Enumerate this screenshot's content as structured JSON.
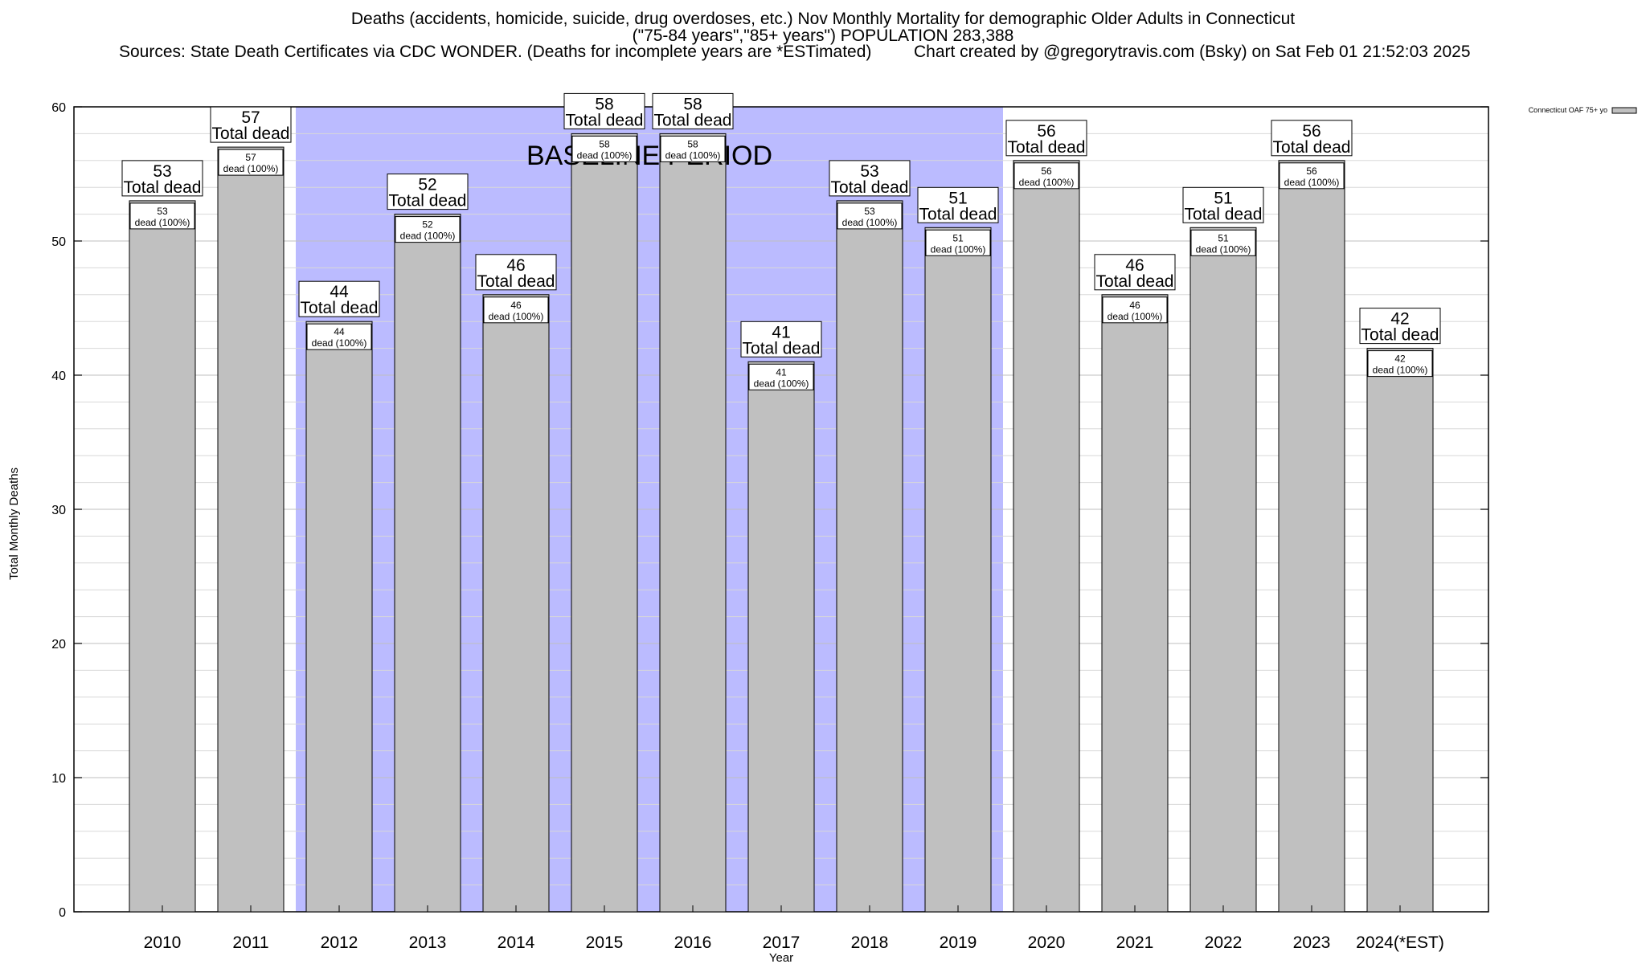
{
  "header": {
    "title": "Deaths (accidents, homicide, suicide, drug overdoses, etc.) Nov Monthly Mortality for demographic Older Adults in Connecticut",
    "subtitle": "(\"75-84 years\",\"85+ years\") POPULATION 283,388",
    "sources": "Sources: State Death Certificates via CDC WONDER. (Deaths for incomplete years are *ESTimated)",
    "credit": "Chart created by @gregorytravis.com (Bsky) on Sat Feb 01 21:52:03 2025"
  },
  "chart_data": {
    "type": "bar",
    "categories": [
      "2010",
      "2011",
      "2012",
      "2013",
      "2014",
      "2015",
      "2016",
      "2017",
      "2018",
      "2019",
      "2020",
      "2021",
      "2022",
      "2023",
      "2024(*EST)"
    ],
    "series": [
      {
        "name": "Connecticut OAF 75+ yo",
        "values": [
          53,
          57,
          44,
          52,
          46,
          58,
          58,
          41,
          53,
          51,
          56,
          46,
          51,
          56,
          42
        ],
        "color": "#c0c0c0"
      }
    ],
    "bar_label_suffix": "Total dead",
    "inner_label_suffix": "dead (100%)",
    "baseline_period": {
      "label": "BASELINE PERIOD",
      "from": "2012",
      "to": "2019",
      "color": "#bbbbff"
    },
    "xlabel": "Year",
    "ylabel": "Total Monthly Deaths",
    "ylim": [
      0,
      60
    ],
    "yticks": [
      0,
      10,
      20,
      30,
      40,
      50,
      60
    ],
    "minor_grid_step": 2,
    "grid": true,
    "legend_position": "top-right"
  }
}
